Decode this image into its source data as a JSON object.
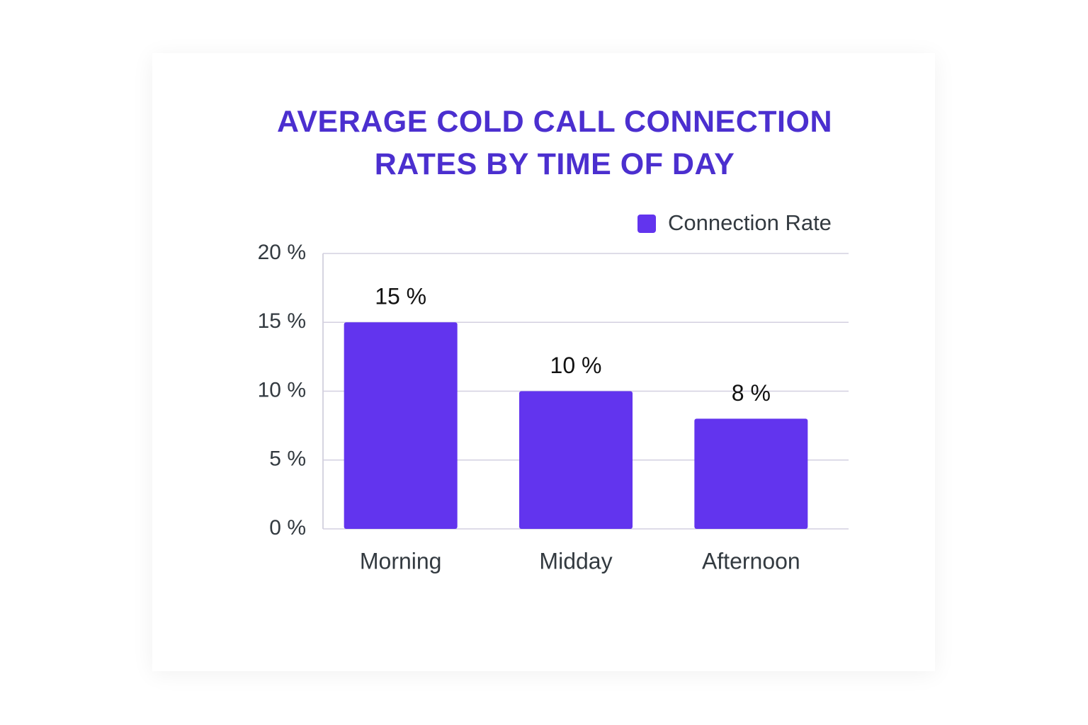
{
  "chart_data": {
    "type": "bar",
    "title": "AVERAGE COLD CALL CONNECTION RATES BY TIME OF DAY",
    "categories": [
      "Morning",
      "Midday",
      "Afternoon"
    ],
    "series": [
      {
        "name": "Connection Rate",
        "color": "#6234ee",
        "values": [
          15,
          10,
          8
        ],
        "value_labels": [
          "15 %",
          "10 %",
          "8 %"
        ]
      }
    ],
    "ylim": [
      0,
      20
    ],
    "yticks": [
      {
        "value": 0,
        "label": "0 %"
      },
      {
        "value": 5,
        "label": "5 %"
      },
      {
        "value": 10,
        "label": "10 %"
      },
      {
        "value": 15,
        "label": "15 %"
      },
      {
        "value": 20,
        "label": "20 %"
      }
    ],
    "grid": true,
    "legend": "top-right"
  }
}
